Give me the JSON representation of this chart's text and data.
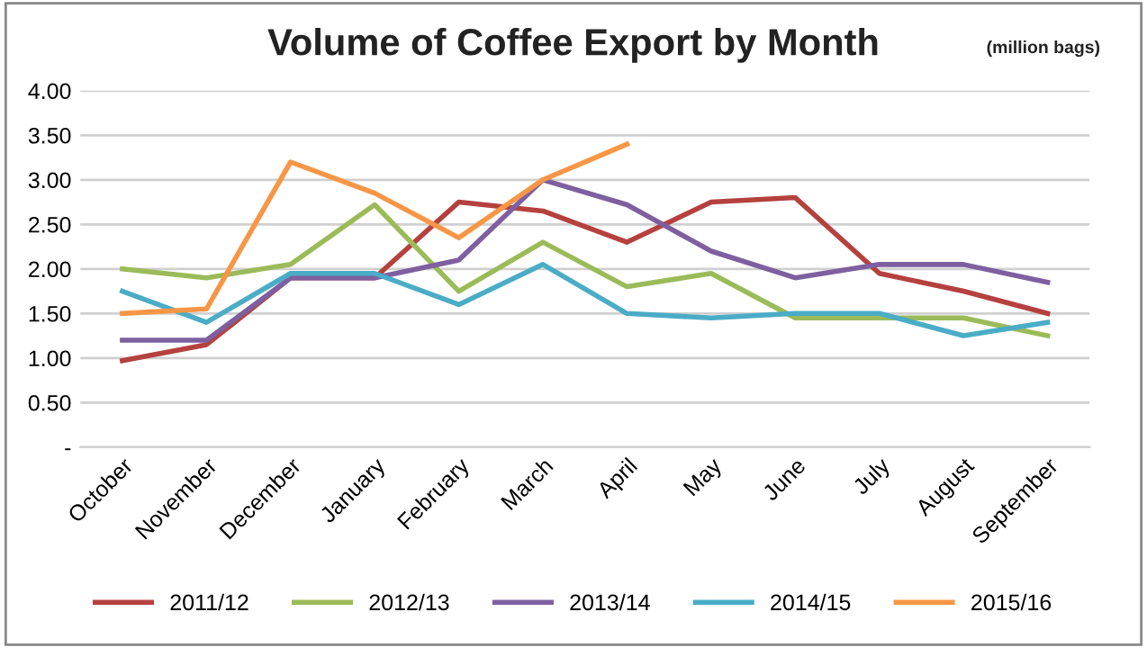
{
  "chart_data": {
    "type": "line",
    "title": "Volume of Coffee Export by Month",
    "subtitle": "(million bags)",
    "categories": [
      "October",
      "November",
      "December",
      "January",
      "February",
      "March",
      "April",
      "May",
      "June",
      "July",
      "August",
      "September"
    ],
    "series": [
      {
        "name": "2011/12",
        "color": "#b5413e",
        "values": [
          0.97,
          1.15,
          1.9,
          1.9,
          2.75,
          2.65,
          2.3,
          2.75,
          2.8,
          1.95,
          1.75,
          1.5
        ]
      },
      {
        "name": "2012/13",
        "color": "#9bbb59",
        "values": [
          2.0,
          1.9,
          2.05,
          2.72,
          1.75,
          2.3,
          1.8,
          1.95,
          1.45,
          1.45,
          1.45,
          1.25
        ]
      },
      {
        "name": "2013/14",
        "color": "#7e5fa0",
        "values": [
          1.2,
          1.2,
          1.9,
          1.9,
          2.1,
          3.0,
          2.72,
          2.2,
          1.9,
          2.05,
          2.05,
          1.85
        ]
      },
      {
        "name": "2014/15",
        "color": "#4aacc6",
        "values": [
          1.75,
          1.4,
          1.95,
          1.95,
          1.6,
          2.05,
          1.5,
          1.45,
          1.5,
          1.5,
          1.25,
          1.4
        ]
      },
      {
        "name": "2015/16",
        "color": "#f79646",
        "values": [
          1.5,
          1.55,
          3.2,
          2.85,
          2.35,
          3.0,
          3.4,
          null,
          null,
          null,
          null,
          null
        ]
      }
    ],
    "ylim": [
      0,
      4.0
    ],
    "yticks": [
      {
        "value": 0,
        "label": "-"
      },
      {
        "value": 0.5,
        "label": "0.50"
      },
      {
        "value": 1.0,
        "label": "1.00"
      },
      {
        "value": 1.5,
        "label": "1.50"
      },
      {
        "value": 2.0,
        "label": "2.00"
      },
      {
        "value": 2.5,
        "label": "2.50"
      },
      {
        "value": 3.0,
        "label": "3.00"
      },
      {
        "value": 3.5,
        "label": "3.50"
      },
      {
        "value": 4.0,
        "label": "4.00"
      }
    ],
    "grid": "y",
    "legend": "bottom",
    "marker": "none",
    "line_style": "solid"
  }
}
